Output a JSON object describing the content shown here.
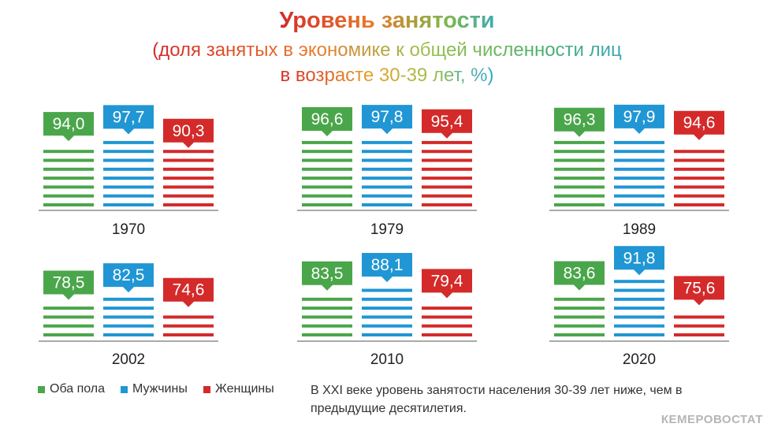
{
  "title": "Уровень занятости",
  "subtitle_line1": "(доля занятых в экономике к общей численности лиц",
  "subtitle_line2": "в возрасте 30-39 лет, %)",
  "legend": {
    "both": "Оба пола",
    "men": "Мужчины",
    "women": "Женщины"
  },
  "note": "В XXI веке уровень занятости населения 30-39 лет ниже, чем в предыдущие десятилетия.",
  "source": "КЕМЕРОВОСТАТ",
  "colors": {
    "both": "#4aa64a",
    "men": "#2196d4",
    "women": "#d42a2a",
    "axis": "#555555"
  },
  "chart_data": {
    "type": "bar",
    "ylabel": "%",
    "series": [
      {
        "name": "Оба пола",
        "key": "both"
      },
      {
        "name": "Мужчины",
        "key": "men"
      },
      {
        "name": "Женщины",
        "key": "women"
      }
    ],
    "panels": [
      {
        "year": "1970",
        "values": [
          94.0,
          97.7,
          90.3
        ],
        "labels": [
          "94,0",
          "97,7",
          "90,3"
        ]
      },
      {
        "year": "1979",
        "values": [
          96.6,
          97.8,
          95.4
        ],
        "labels": [
          "96,6",
          "97,8",
          "95,4"
        ]
      },
      {
        "year": "1989",
        "values": [
          96.3,
          97.9,
          94.6
        ],
        "labels": [
          "96,3",
          "97,9",
          "94,6"
        ]
      },
      {
        "year": "2002",
        "values": [
          78.5,
          82.5,
          74.6
        ],
        "labels": [
          "78,5",
          "82,5",
          "74,6"
        ]
      },
      {
        "year": "2010",
        "values": [
          83.5,
          88.1,
          79.4
        ],
        "labels": [
          "83,5",
          "88,1",
          "79,4"
        ]
      },
      {
        "year": "2020",
        "values": [
          83.6,
          91.8,
          75.6
        ],
        "labels": [
          "83,6",
          "91,8",
          "75,6"
        ]
      }
    ]
  }
}
